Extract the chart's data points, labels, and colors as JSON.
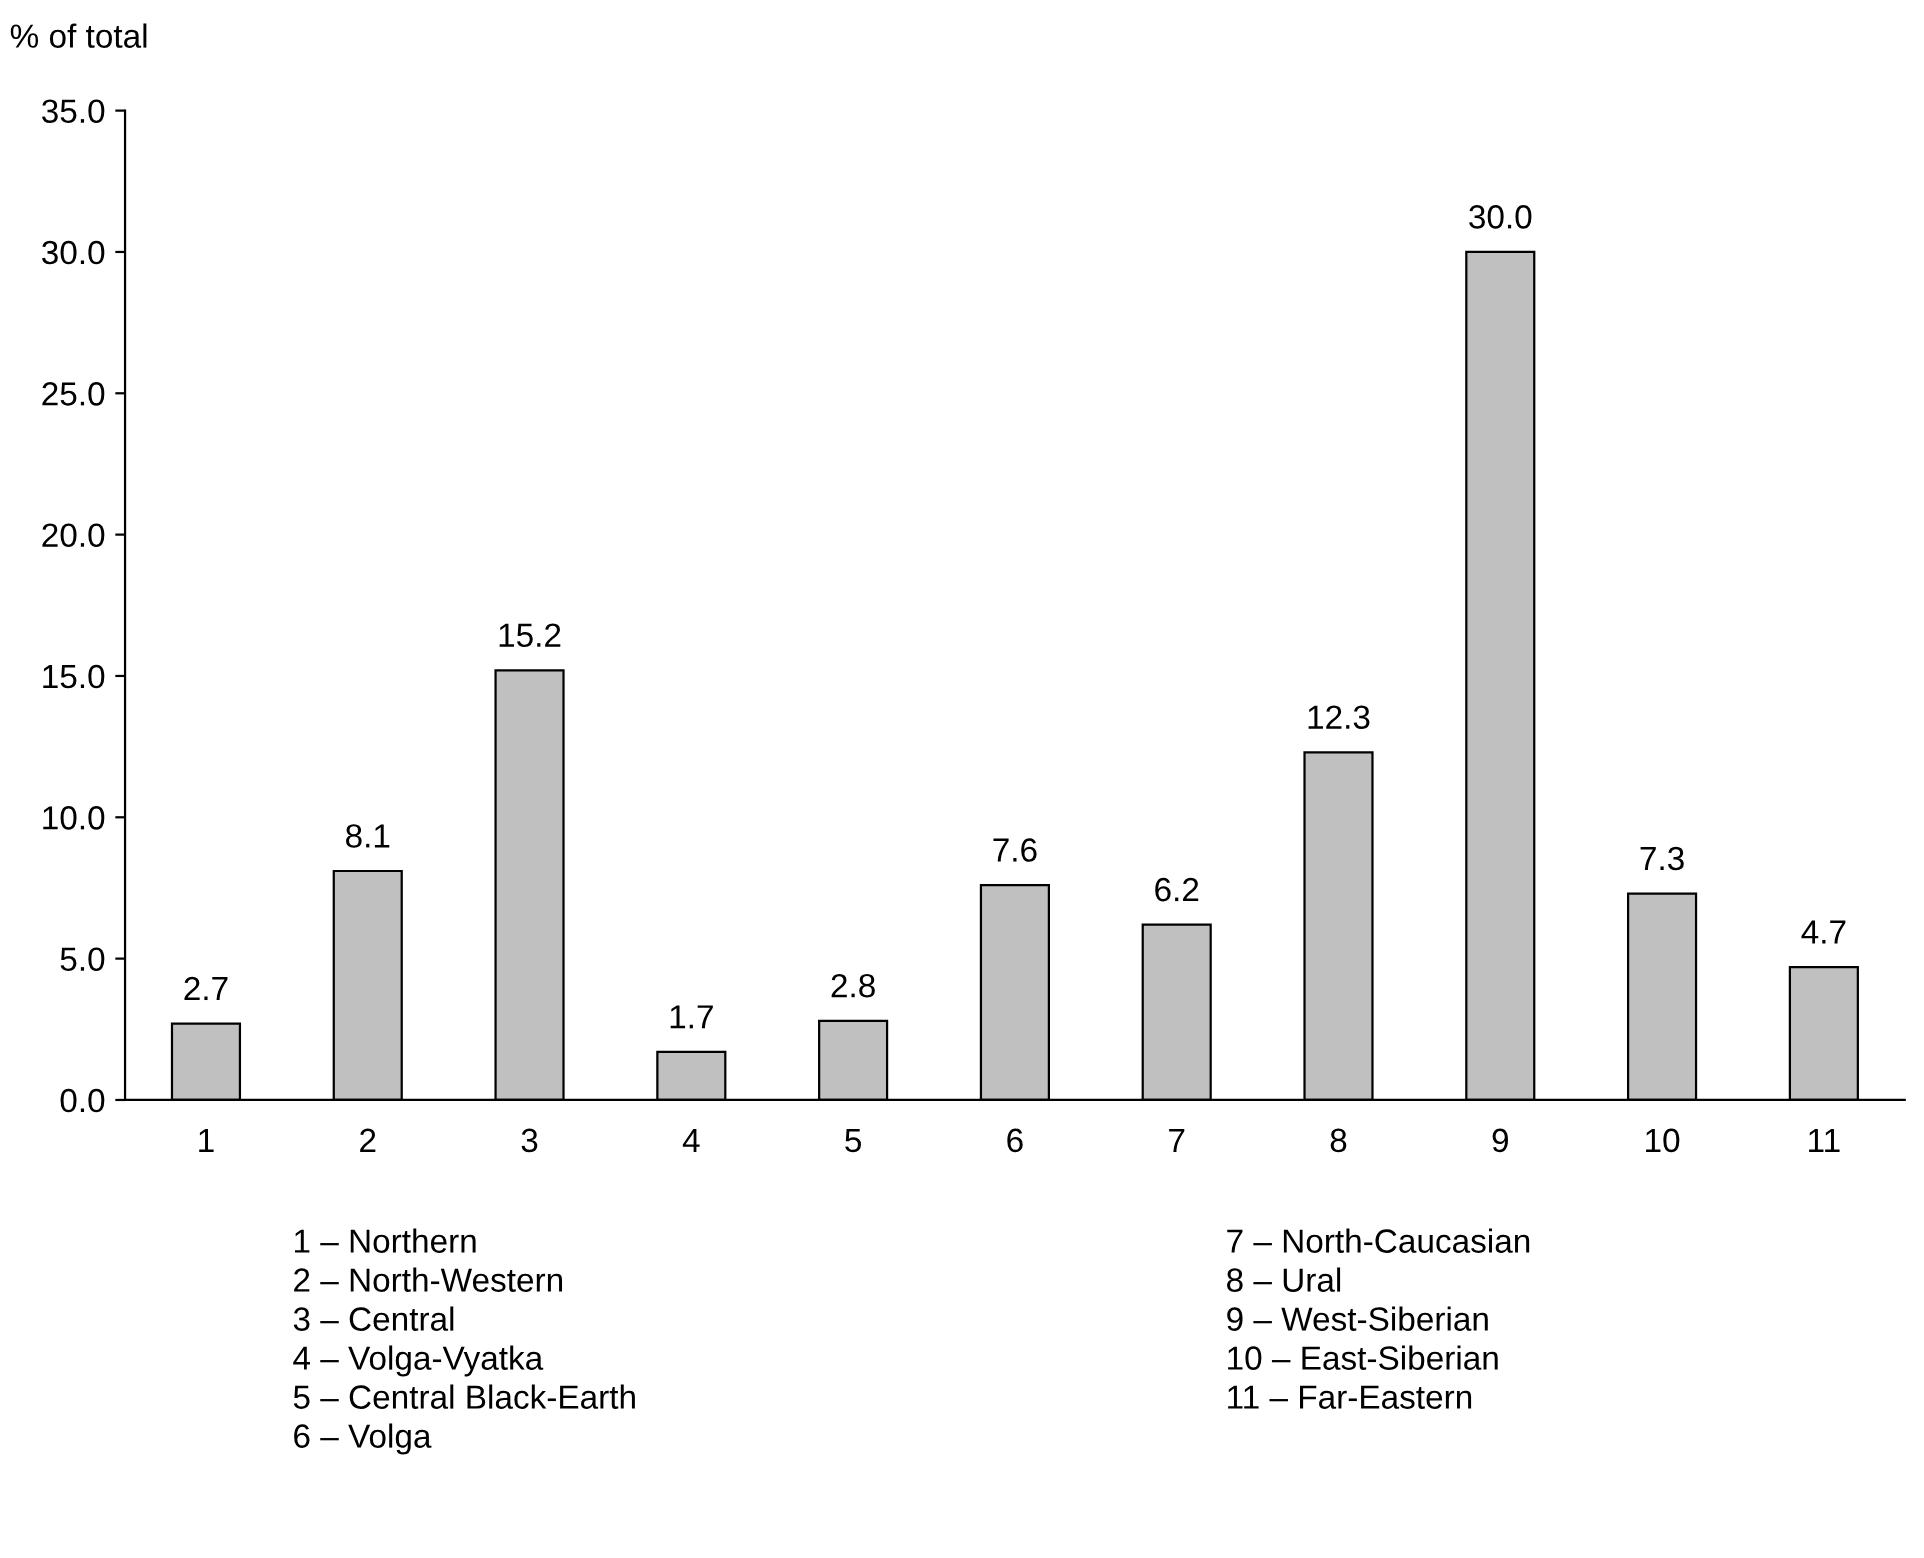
{
  "chart_data": {
    "type": "bar",
    "ylabel": "% of total",
    "categories": [
      "1",
      "2",
      "3",
      "4",
      "5",
      "6",
      "7",
      "8",
      "9",
      "10",
      "11"
    ],
    "values": [
      2.7,
      8.1,
      15.2,
      1.7,
      2.8,
      7.6,
      6.2,
      12.3,
      30.0,
      7.3,
      4.7
    ],
    "color": "#c0c0c0",
    "value_labels": [
      "2.7",
      "8.1",
      "15.2",
      "1.7",
      "2.8",
      "7.6",
      "6.2",
      "12.3",
      "30.0",
      "7.3",
      "4.7"
    ],
    "grid": false,
    "legend": false,
    "ylim": [
      0,
      35
    ],
    "yticks": [
      {
        "value": 0,
        "label": "0.0"
      },
      {
        "value": 5,
        "label": "5.0"
      },
      {
        "value": 10,
        "label": "10.0"
      },
      {
        "value": 15,
        "label": "15.0"
      },
      {
        "value": 20,
        "label": "20.0"
      },
      {
        "value": 25,
        "label": "25.0"
      },
      {
        "value": 30,
        "label": "30.0"
      },
      {
        "value": 35,
        "label": "35.0"
      }
    ],
    "annotations": [
      "1 – Northern",
      "2 – North-Western",
      "3 – Central",
      "4 – Volga-Vyatka",
      "5 – Central Black-Earth",
      "6 – Volga",
      "7 – North-Caucasian",
      "8 – Ural",
      "9 – West-Siberian",
      "10 – East-Siberian",
      "11 – Far-Eastern"
    ]
  }
}
